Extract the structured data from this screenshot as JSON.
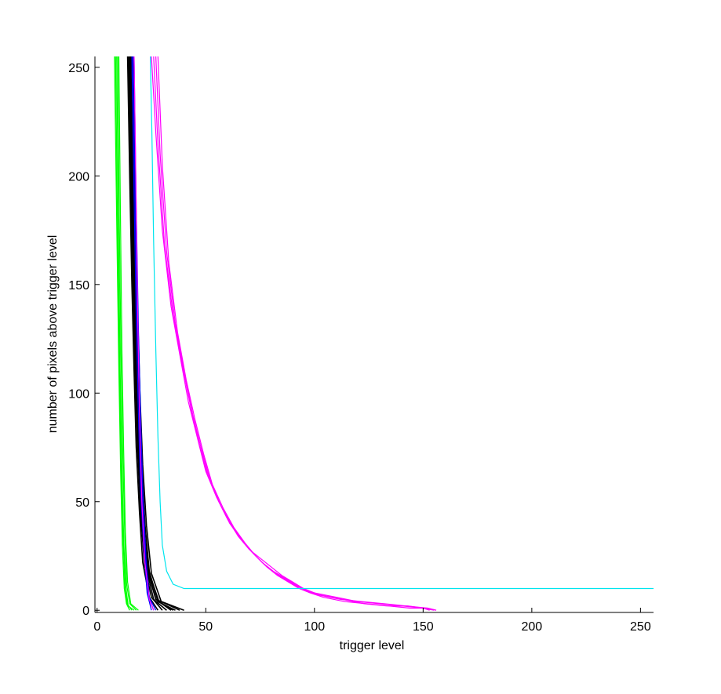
{
  "chart_data": {
    "type": "line",
    "title": "",
    "xlabel": "trigger level",
    "ylabel": "number of pixels above trigger level",
    "xlim": [
      -1,
      256
    ],
    "ylim": [
      -1,
      255
    ],
    "xticks": [
      0,
      50,
      100,
      150,
      200,
      250
    ],
    "yticks": [
      0,
      50,
      100,
      150,
      200,
      250
    ],
    "grid": false,
    "legend": "none",
    "series_groups": [
      {
        "color": "#00ff00",
        "lines": [
          {
            "x": [
              8,
              9,
              10,
              10.8,
              11.6,
              12.5,
              13.5,
              15
            ],
            "y": [
              255,
              180,
              110,
              65,
              30,
              10,
              3,
              0
            ]
          },
          {
            "x": [
              8.5,
              9.3,
              10.2,
              11,
              11.9,
              12.8,
              13.8,
              16
            ],
            "y": [
              255,
              185,
              115,
              70,
              34,
              12,
              3,
              0
            ]
          },
          {
            "x": [
              9,
              9.8,
              10.6,
              11.4,
              12.3,
              13.2,
              14.3,
              17
            ],
            "y": [
              255,
              180,
              112,
              66,
              31,
              11,
              2,
              0
            ]
          },
          {
            "x": [
              9.5,
              10.2,
              11,
              11.8,
              12.7,
              13.6,
              15,
              18
            ],
            "y": [
              255,
              182,
              118,
              72,
              35,
              12,
              3,
              0
            ]
          },
          {
            "x": [
              10,
              10.7,
              11.4,
              12.2,
              13,
              14,
              15.5,
              19
            ],
            "y": [
              255,
              186,
              120,
              74,
              36,
              13,
              3,
              0
            ]
          }
        ]
      },
      {
        "color": "#000000",
        "lines": [
          {
            "x": [
              14,
              15,
              16,
              17,
              18,
              19.5,
              21,
              24,
              28
            ],
            "y": [
              255,
              200,
              150,
              110,
              75,
              45,
              22,
              6,
              0
            ]
          },
          {
            "x": [
              14.5,
              15.5,
              16.5,
              17.5,
              18.6,
              20,
              21.8,
              25,
              30
            ],
            "y": [
              255,
              198,
              148,
              108,
              74,
              44,
              21,
              6,
              0
            ]
          },
          {
            "x": [
              15,
              16,
              17,
              18,
              19.2,
              20.6,
              22.5,
              26,
              32
            ],
            "y": [
              255,
              196,
              145,
              106,
              72,
              43,
              20,
              5,
              0
            ]
          },
          {
            "x": [
              15.5,
              16.5,
              17.5,
              18.6,
              19.8,
              21.3,
              23.3,
              27,
              34
            ],
            "y": [
              255,
              195,
              143,
              104,
              70,
              42,
              19,
              5,
              0
            ]
          },
          {
            "x": [
              16,
              17,
              18,
              19.1,
              20.4,
              22,
              24,
              28,
              36
            ],
            "y": [
              255,
              193,
              140,
              102,
              69,
              40,
              18,
              4,
              0
            ]
          },
          {
            "x": [
              16.5,
              17.5,
              18.6,
              19.7,
              21,
              22.7,
              25,
              29.5,
              38
            ],
            "y": [
              255,
              192,
              138,
              100,
              67,
              39,
              17,
              4,
              0
            ]
          },
          {
            "x": [
              14.8,
              15.8,
              16.8,
              17.9,
              19,
              20.6,
              23,
              27,
              40
            ],
            "y": [
              255,
              197,
              146,
              107,
              73,
              43,
              19,
              5,
              0
            ]
          },
          {
            "x": [
              15.2,
              16.2,
              17.3,
              18.4,
              19.6,
              21.2,
              23.6,
              28.5,
              35
            ],
            "y": [
              255,
              194,
              142,
              103,
              70,
              41,
              18,
              4,
              0
            ]
          }
        ]
      },
      {
        "color": "#0000ff",
        "lines": [
          {
            "x": [
              16,
              17,
              18,
              19,
              20,
              21.5,
              23,
              25
            ],
            "y": [
              255,
              190,
              135,
              90,
              55,
              28,
              8,
              0
            ]
          },
          {
            "x": [
              16.5,
              17.5,
              18.5,
              19.6,
              20.7,
              22,
              23.5,
              26
            ],
            "y": [
              255,
              188,
              133,
              88,
              53,
              26,
              7,
              0
            ]
          },
          {
            "x": [
              17,
              18,
              19,
              20.1,
              21.2,
              22.5,
              24,
              27
            ],
            "y": [
              255,
              186,
              130,
              86,
              51,
              24,
              6,
              0
            ]
          }
        ]
      },
      {
        "color": "#ff00ff",
        "lines": [
          {
            "x": [
              17,
              17.8,
              18.6,
              19.5,
              20.6,
              22,
              24,
              26
            ],
            "y": [
              255,
              200,
              140,
              90,
              50,
              22,
              5,
              0
            ]
          },
          {
            "x": [
              25,
              27,
              30,
              34,
              38,
              42,
              46,
              50,
              55,
              60,
              65,
              70,
              75,
              80,
              85,
              90,
              95,
              100,
              110,
              120,
              130,
              140,
              150,
              153
            ],
            "y": [
              255,
              220,
              175,
              140,
              118,
              96,
              80,
              64,
              52,
              42,
              34,
              28,
              24,
              20,
              16,
              13,
              10,
              8,
              6,
              4,
              3,
              2,
              1,
              0
            ]
          },
          {
            "x": [
              26,
              28,
              31,
              35,
              39,
              43,
              47,
              51,
              56,
              61,
              66,
              71,
              76,
              81,
              86,
              91,
              96,
              102,
              112,
              122,
              132,
              142,
              152,
              156
            ],
            "y": [
              255,
              215,
              168,
              136,
              114,
              94,
              76,
              62,
              50,
              40,
              33,
              27,
              22,
              18,
              15,
              12,
              9,
              7,
              5,
              4,
              3,
              2,
              1,
              0
            ]
          },
          {
            "x": [
              27,
              29,
              32,
              36,
              40,
              44,
              48,
              52,
              57,
              62,
              67,
              72,
              77,
              82,
              87,
              92,
              97,
              103,
              113,
              123,
              133,
              143,
              150,
              155
            ],
            "y": [
              255,
              210,
              165,
              132,
              110,
              90,
              74,
              60,
              48,
              39,
              32,
              26,
              21,
              17,
              14,
              11,
              9,
              7,
              5,
              3,
              2,
              2,
              1,
              0
            ]
          },
          {
            "x": [
              28,
              30,
              33,
              37,
              41,
              45,
              49,
              53,
              58,
              63,
              68,
              73,
              78,
              83,
              88,
              93,
              98,
              104,
              114,
              124,
              134,
              144,
              152,
              156
            ],
            "y": [
              255,
              205,
              160,
              128,
              106,
              88,
              72,
              58,
              47,
              38,
              31,
              25,
              20,
              16,
              13,
              10,
              8,
              6,
              4,
              3,
              2,
              1,
              1,
              0
            ]
          }
        ]
      },
      {
        "color": "#00e5ee",
        "lines": [
          {
            "x": [
              24.5,
              25.2,
              26,
              27,
              28,
              29,
              30,
              32,
              35,
              40,
              60,
              100,
              150,
              200,
              256
            ],
            "y": [
              255,
              220,
              170,
              120,
              80,
              50,
              30,
              18,
              12,
              10,
              10,
              10,
              10,
              10,
              10
            ]
          }
        ]
      }
    ]
  }
}
